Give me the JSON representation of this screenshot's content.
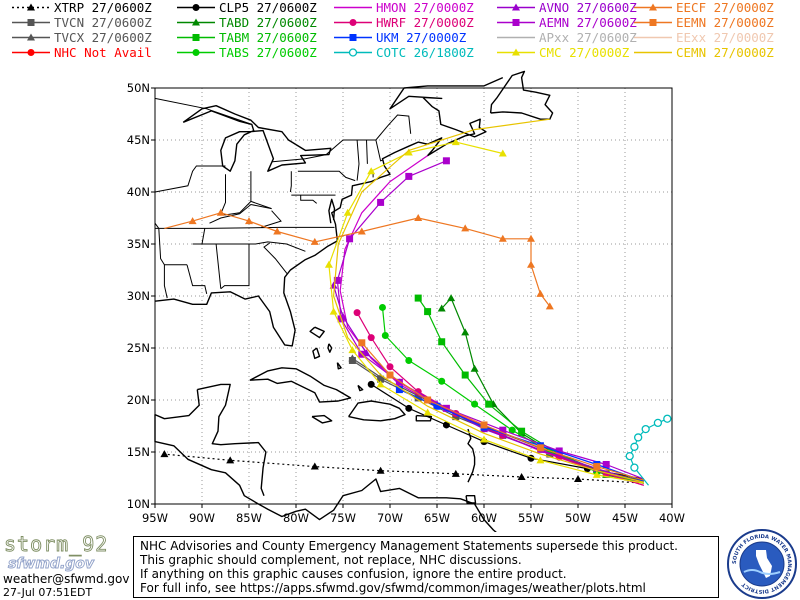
{
  "legend": [
    {
      "label": "XTRP 27/0600Z",
      "color": "#000000",
      "marker": "triangle",
      "dash": "2,3"
    },
    {
      "label": "CLP5 27/0600Z",
      "color": "#000000",
      "marker": "circle",
      "dash": "none"
    },
    {
      "label": "HMON 27/0000Z",
      "color": "#cc00cc",
      "marker": "none",
      "dash": "none"
    },
    {
      "label": "AVNO 27/0600Z",
      "color": "#9900cc",
      "marker": "triangle",
      "dash": "none"
    },
    {
      "label": "EECF 27/0000Z",
      "color": "#ee7722",
      "marker": "triangle",
      "dash": "none"
    },
    {
      "label": "TVCN 27/0600Z",
      "color": "#555555",
      "marker": "square",
      "dash": "none"
    },
    {
      "label": "TABD 27/0600Z",
      "color": "#008800",
      "marker": "triangle",
      "dash": "none"
    },
    {
      "label": "HWRF 27/0000Z",
      "color": "#dd0077",
      "marker": "circle",
      "dash": "none"
    },
    {
      "label": "AEMN 27/0600Z",
      "color": "#aa00cc",
      "marker": "square",
      "dash": "none"
    },
    {
      "label": "EEMN 27/0000Z",
      "color": "#ee7722",
      "marker": "square",
      "dash": "none"
    },
    {
      "label": "TVCX 27/0600Z",
      "color": "#555555",
      "marker": "triangle",
      "dash": "none"
    },
    {
      "label": "TABM 27/0600Z",
      "color": "#00bb00",
      "marker": "square",
      "dash": "none"
    },
    {
      "label": "UKM  27/0000Z",
      "color": "#0033ff",
      "marker": "square",
      "dash": "none"
    },
    {
      "label": "APxx 27/0600Z",
      "color": "#b0b0b0",
      "marker": "none",
      "dash": "none"
    },
    {
      "label": "EExx 27/0000Z",
      "color": "#f0c8b0",
      "marker": "none",
      "dash": "none"
    },
    {
      "label": "NHC Not Avail",
      "color": "#ff0000",
      "marker": "circle",
      "dash": "none"
    },
    {
      "label": "TABS 27/0600Z",
      "color": "#00cc00",
      "marker": "circle",
      "dash": "none"
    },
    {
      "label": "COTC 26/1800Z",
      "color": "#00bbbb",
      "marker": "open-circle",
      "dash": "none"
    },
    {
      "label": "CMC  27/0000Z",
      "color": "#e8e000",
      "marker": "triangle",
      "dash": "none"
    },
    {
      "label": "CEMN 27/0000Z",
      "color": "#e8c400",
      "marker": "none",
      "dash": "none"
    }
  ],
  "map": {
    "lon_range": [
      -95,
      -40
    ],
    "lat_range": [
      10,
      50
    ],
    "lon_ticks": [
      "95W",
      "90W",
      "85W",
      "80W",
      "75W",
      "70W",
      "65W",
      "60W",
      "55W",
      "50W",
      "45W",
      "40W"
    ],
    "lat_ticks": [
      "10N",
      "15N",
      "20N",
      "25N",
      "30N",
      "35N",
      "40N",
      "45N",
      "50N"
    ],
    "grid": "dotted"
  },
  "tracks": [
    {
      "model": "XTRP 27/0600Z",
      "points": [
        [
          -43,
          12
        ],
        [
          -50,
          12.4
        ],
        [
          -56,
          12.6
        ],
        [
          -63,
          12.9
        ],
        [
          -71,
          13.2
        ],
        [
          -78,
          13.6
        ],
        [
          -87,
          14.2
        ],
        [
          -94,
          14.8
        ]
      ]
    },
    {
      "model": "CLP5 27/0600Z",
      "points": [
        [
          -43,
          12.4
        ],
        [
          -49,
          13.4
        ],
        [
          -55,
          14.4
        ],
        [
          -60,
          16
        ],
        [
          -64,
          17.6
        ],
        [
          -68,
          19.2
        ],
        [
          -72,
          21.5
        ]
      ]
    },
    {
      "model": "TVCN 27/0600Z",
      "points": [
        [
          -43,
          12.2
        ],
        [
          -48,
          13.2
        ],
        [
          -53,
          14.8
        ],
        [
          -58,
          16.6
        ],
        [
          -63,
          18.4
        ],
        [
          -67,
          20.2
        ],
        [
          -71,
          22
        ],
        [
          -74,
          23.8
        ]
      ]
    },
    {
      "model": "TVCX 27/0600Z",
      "points": [
        [
          -43,
          12.2
        ],
        [
          -48,
          13.3
        ],
        [
          -53,
          15
        ],
        [
          -58,
          16.8
        ],
        [
          -63,
          18.6
        ],
        [
          -67,
          20.4
        ],
        [
          -71,
          22.2
        ],
        [
          -74,
          24
        ]
      ]
    },
    {
      "model": "TABD 27/0600Z",
      "points": [
        [
          -43,
          12
        ],
        [
          -47,
          12.8
        ],
        [
          -52,
          14.6
        ],
        [
          -56,
          16.8
        ],
        [
          -59,
          19.6
        ],
        [
          -61,
          23
        ],
        [
          -62,
          26.5
        ],
        [
          -63.5,
          29.8
        ],
        [
          -64.5,
          28.8
        ]
      ]
    },
    {
      "model": "TABM 27/0600Z",
      "points": [
        [
          -43,
          12
        ],
        [
          -47,
          12.9
        ],
        [
          -52,
          14.8
        ],
        [
          -56,
          17
        ],
        [
          -59.5,
          19.6
        ],
        [
          -62,
          22.4
        ],
        [
          -64.5,
          25.6
        ],
        [
          -66,
          28.5
        ],
        [
          -67,
          29.8
        ]
      ]
    },
    {
      "model": "TABS 27/0600Z",
      "points": [
        [
          -43,
          12
        ],
        [
          -48,
          13.1
        ],
        [
          -53,
          15
        ],
        [
          -57,
          17.1
        ],
        [
          -61,
          19.6
        ],
        [
          -64.5,
          21.8
        ],
        [
          -68,
          23.8
        ],
        [
          -70.5,
          26.2
        ],
        [
          -70.8,
          28.9
        ]
      ]
    },
    {
      "model": "HMON 27/0000Z",
      "points": [
        [
          -43,
          11.8
        ],
        [
          -48,
          13.2
        ],
        [
          -54,
          15.1
        ],
        [
          -60,
          17.4
        ],
        [
          -65,
          19.5
        ],
        [
          -69,
          21.5
        ],
        [
          -72,
          24
        ],
        [
          -74.5,
          27
        ],
        [
          -75.3,
          30.5
        ],
        [
          -74.8,
          34.5
        ],
        [
          -73,
          38
        ],
        [
          -70,
          41
        ],
        [
          -66,
          43.5
        ]
      ]
    },
    {
      "model": "HWRF 27/0000Z",
      "points": [
        [
          -43,
          11.8
        ],
        [
          -47,
          12.9
        ],
        [
          -52,
          14.5
        ],
        [
          -58,
          16.6
        ],
        [
          -63,
          18.7
        ],
        [
          -67,
          20.8
        ],
        [
          -70,
          23.2
        ],
        [
          -72,
          26
        ],
        [
          -73.5,
          28.4
        ]
      ]
    },
    {
      "model": "AVNO 27/0600Z",
      "points": [
        [
          -43,
          12
        ],
        [
          -48,
          13.4
        ],
        [
          -54,
          15.2
        ],
        [
          -60,
          17.2
        ],
        [
          -65,
          19.6
        ],
        [
          -69,
          21.7
        ],
        [
          -72.5,
          24.5
        ],
        [
          -75,
          28
        ],
        [
          -76,
          31
        ]
      ]
    },
    {
      "model": "AEMN 27/0600Z",
      "points": [
        [
          -43,
          12.4
        ],
        [
          -47,
          13.8
        ],
        [
          -52,
          15.1
        ],
        [
          -58,
          17.1
        ],
        [
          -64,
          19.2
        ],
        [
          -69,
          21.7
        ],
        [
          -73,
          24.4
        ],
        [
          -75.2,
          27.8
        ],
        [
          -75.6,
          31.5
        ],
        [
          -74.3,
          35.5
        ],
        [
          -71,
          39
        ],
        [
          -68,
          41.5
        ],
        [
          -64,
          43
        ]
      ]
    },
    {
      "model": "UKM  27/0000Z",
      "points": [
        [
          -43,
          12.2
        ],
        [
          -48,
          13.8
        ],
        [
          -54,
          15.6
        ],
        [
          -60,
          17.4
        ],
        [
          -65,
          19.4
        ],
        [
          -69,
          21
        ]
      ]
    },
    {
      "model": "CMC  27/0000Z",
      "points": [
        [
          -43,
          12
        ],
        [
          -48,
          12.8
        ],
        [
          -54,
          14.2
        ],
        [
          -60,
          16.2
        ],
        [
          -66,
          18.8
        ],
        [
          -71,
          21.5
        ],
        [
          -74,
          24.8
        ],
        [
          -76,
          28.5
        ],
        [
          -76.5,
          33
        ],
        [
          -74.5,
          38
        ],
        [
          -72,
          42
        ],
        [
          -68,
          43.8
        ],
        [
          -63,
          44.8
        ],
        [
          -58,
          43.7
        ]
      ]
    },
    {
      "model": "CEMN 27/0000Z",
      "points": [
        [
          -43,
          12.1
        ],
        [
          -48,
          13.2
        ],
        [
          -54,
          14.8
        ],
        [
          -60,
          16.8
        ],
        [
          -66,
          19.4
        ],
        [
          -71,
          22.4
        ],
        [
          -74.5,
          26
        ],
        [
          -76,
          30
        ],
        [
          -75.5,
          35
        ],
        [
          -73,
          40
        ],
        [
          -68,
          44
        ],
        [
          -61,
          46
        ],
        [
          -53,
          47
        ]
      ]
    },
    {
      "model": "COTC 26/1800Z",
      "points": [
        [
          -42.5,
          11.8
        ],
        [
          -44,
          13.5
        ],
        [
          -44.5,
          14.6
        ],
        [
          -44,
          15.5
        ],
        [
          -43.6,
          16.4
        ],
        [
          -42.8,
          17.2
        ],
        [
          -41.5,
          17.8
        ],
        [
          -40.5,
          18.2
        ]
      ]
    },
    {
      "model": "EECF 27/0000Z",
      "points": [
        [
          -94,
          36.5
        ],
        [
          -91,
          37.2
        ],
        [
          -88,
          38
        ],
        [
          -85,
          37.2
        ],
        [
          -82,
          36.2
        ],
        [
          -78,
          35.2
        ],
        [
          -73,
          36.2
        ],
        [
          -67,
          37.5
        ],
        [
          -62,
          36.5
        ],
        [
          -58,
          35.5
        ],
        [
          -55,
          35.5
        ],
        [
          -55,
          33
        ],
        [
          -54,
          30.2
        ],
        [
          -53,
          29
        ]
      ]
    },
    {
      "model": "EEMN 27/0000Z",
      "points": [
        [
          -43,
          12.3
        ],
        [
          -48,
          13.6
        ],
        [
          -54,
          15.4
        ],
        [
          -60,
          17.6
        ],
        [
          -66,
          20
        ],
        [
          -70,
          22.4
        ],
        [
          -73,
          25.5
        ]
      ]
    }
  ],
  "disclaimer": [
    "NHC Advisories and County Emergency Management Statements supersede this product.",
    "This graphic should complement, not replace, NHC discussions.",
    "If anything on this graphic causes confusion, ignore the entire product.",
    "For full info, see  https://apps.sfwmd.gov/sfwmd/common/images/weather/plots.html"
  ],
  "footer": {
    "brand": "storm_92",
    "email": "weather@sfwmd.gov",
    "timestamp": "27-Jul 07:51EDT",
    "watermark": "sfwmd.gov",
    "seal_text": "SOUTH FLORIDA WATER MANAGEMENT DISTRICT"
  }
}
